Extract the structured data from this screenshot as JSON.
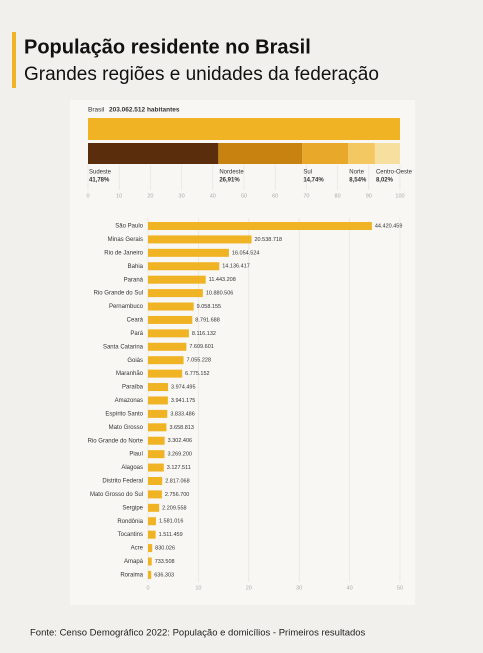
{
  "header": {
    "title": "População residente no Brasil",
    "subtitle": "Grandes regiões e unidades da federação"
  },
  "chart_data": [
    {
      "type": "stacked-bar",
      "total": {
        "name": "Brasil",
        "value": 203062512,
        "value_label": "203.062.512 habitantes",
        "color": "#f0b323"
      },
      "categories": [
        "Sudeste",
        "Nordeste",
        "Sul",
        "Norte",
        "Centro-Oeste"
      ],
      "values": [
        41.78,
        26.91,
        14.74,
        8.54,
        8.02
      ],
      "value_labels": [
        "41,78%",
        "26,91%",
        "14,74%",
        "8,54%",
        "8,02%"
      ],
      "colors": [
        "#5a2d0c",
        "#c8820f",
        "#e8a92a",
        "#f3c862",
        "#f7dfa0"
      ],
      "xlim": [
        0,
        100
      ],
      "xticks": [
        0,
        10,
        20,
        30,
        40,
        50,
        60,
        70,
        80,
        90,
        100
      ],
      "grid": true
    },
    {
      "type": "hbar",
      "categories": [
        "São Paulo",
        "Minas Gerais",
        "Rio de Janeiro",
        "Bahia",
        "Paraná",
        "Rio Grande do Sul",
        "Pernambuco",
        "Ceará",
        "Pará",
        "Santa Catarina",
        "Goiás",
        "Maranhão",
        "Paraíba",
        "Amazonas",
        "Espírito Santo",
        "Mato Grosso",
        "Rio Grande do Norte",
        "Piauí",
        "Alagoas",
        "Distrito Federal",
        "Mato Grosso do Sul",
        "Sergipe",
        "Rondônia",
        "Tocantins",
        "Acre",
        "Amapá",
        "Roraima"
      ],
      "values": [
        44.420459,
        20.538718,
        16.054524,
        14.136417,
        11.443208,
        10.880506,
        9.058155,
        8.791688,
        8.116132,
        7.609601,
        7.055228,
        6.775152,
        3.974495,
        3.941175,
        3.833486,
        3.658813,
        3.302406,
        3.2692,
        3.127511,
        2.817068,
        2.7567,
        2.209558,
        1.581016,
        1.511459,
        0.830026,
        0.733508,
        0.636303
      ],
      "value_labels": [
        "44.420.459",
        "20.538.718",
        "16.054.524",
        "14.136.417",
        "11.443.208",
        "10.880.506",
        "9.058.155",
        "8.791.688",
        "8.116.132",
        "7.609.601",
        "7.055.228",
        "6.775.152",
        "3.974.495",
        "3.941.175",
        "3.833.486",
        "3.658.813",
        "3.302.406",
        "3.269.200",
        "3.127.511",
        "2.817.068",
        "2.756.700",
        "2.209.558",
        "1.581.016",
        "1.511.459",
        "830.026",
        "733.508",
        "636.303"
      ],
      "color": "#f0b323",
      "xlim": [
        0,
        50
      ],
      "xticks": [
        0,
        10,
        20,
        30,
        40,
        50
      ],
      "grid": true
    }
  ],
  "footer": {
    "source": "Fonte: Censo Demográfico 2022: População e domicílios - Primeiros resultados"
  }
}
